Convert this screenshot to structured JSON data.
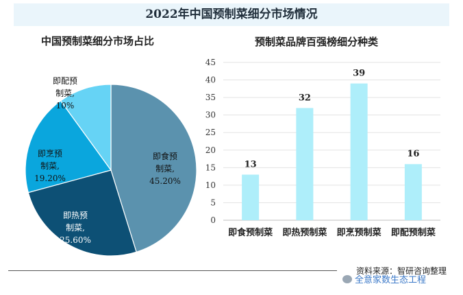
{
  "title": "2022年中国预制菜细分市场情况",
  "source": "资料来源：智研咨询整理",
  "watermark": "全意家数生态工程",
  "chart_data": [
    {
      "type": "pie",
      "title": "中国预制菜细分市场占比",
      "slices": [
        {
          "name": "即食预制菜",
          "value": 45.2,
          "label": [
            "即食预",
            "制菜,",
            "45.20%"
          ],
          "color": "#5b92ae"
        },
        {
          "name": "即热预制菜",
          "value": 25.6,
          "label": [
            "即热预",
            "制菜,",
            "25.60%"
          ],
          "color": "#0d5075"
        },
        {
          "name": "即烹预制菜",
          "value": 19.2,
          "label": [
            "即烹预",
            "制菜,",
            "19.20%"
          ],
          "color": "#0aa6dd"
        },
        {
          "name": "即配预制菜",
          "value": 10,
          "label": [
            "即配预",
            "制菜,",
            "10%"
          ],
          "color": "#66d3f5"
        }
      ]
    },
    {
      "type": "bar",
      "title": "预制菜品牌百强榜细分种类",
      "categories": [
        "即食预制菜",
        "即热预制菜",
        "即烹预制菜",
        "即配预制菜"
      ],
      "values": [
        13,
        32,
        39,
        16
      ],
      "ylim": [
        0,
        45
      ],
      "yticks": [
        0,
        5,
        10,
        15,
        20,
        25,
        30,
        35,
        40,
        45
      ],
      "bar_color": "#aeeefa"
    }
  ]
}
